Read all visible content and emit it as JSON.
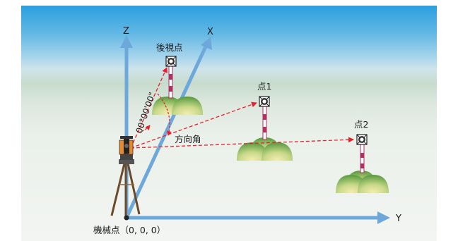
{
  "labels": {
    "axis_x": "X",
    "axis_y": "Y",
    "axis_z": "Z",
    "backsight": "後視点",
    "point1": "点1",
    "point2": "点2",
    "angle_zero": "00°00'00\"",
    "direction_angle": "方向角",
    "instrument_point": "機械点（0, 0, 0）"
  },
  "colors": {
    "sky_top": "#2a9fe0",
    "sky_mid": "#a8d5ec",
    "ground_band": "#c8dccf",
    "ground": "#eef1ee",
    "axis": "#6ea8db",
    "dashed": "#e8202a",
    "mound_light": "#f2e6a0",
    "mound_dark": "#6fa84a",
    "pole": "#b03060"
  },
  "icons": {
    "instrument": "total-station-icon",
    "prism": "prism-target-icon",
    "mound": "grass-mound-icon"
  }
}
